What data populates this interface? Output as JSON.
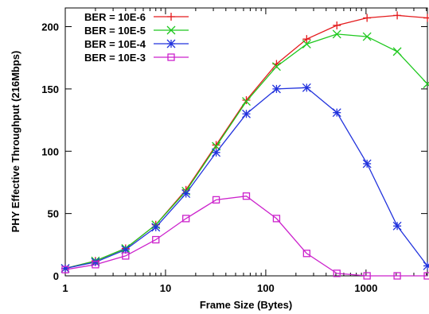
{
  "chart_data": {
    "type": "line",
    "xlabel": "Frame Size (Bytes)",
    "ylabel": "PHY Effective Throughput (216Mbps)",
    "x_scale": "log",
    "xlim": [
      1,
      4096
    ],
    "ylim": [
      0,
      215
    ],
    "x_ticks": [
      1,
      10,
      100,
      1000
    ],
    "x_tick_labels": [
      "1",
      "10",
      "100",
      "1000"
    ],
    "y_ticks": [
      0,
      50,
      100,
      150,
      200
    ],
    "y_tick_labels": [
      "0",
      "50",
      "100",
      "150",
      "200"
    ],
    "grid": false,
    "legend_position": "top-left",
    "x": [
      1,
      2,
      4,
      8,
      16,
      32,
      64,
      128,
      256,
      512,
      1024,
      2048,
      4096
    ],
    "series": [
      {
        "name": "BER = 10E-6",
        "color": "#e41a1c",
        "marker": "plus",
        "values": [
          6,
          12,
          22,
          41,
          69,
          105,
          141,
          170,
          190,
          201,
          207,
          209,
          207
        ]
      },
      {
        "name": "BER = 10E-5",
        "color": "#1ec81e",
        "marker": "cross",
        "values": [
          6,
          12,
          22,
          41,
          68,
          104,
          140,
          168,
          186,
          194,
          192,
          180,
          154
        ]
      },
      {
        "name": "BER = 10E-4",
        "color": "#2233dd",
        "marker": "star",
        "values": [
          6,
          11,
          21,
          39,
          66,
          99,
          130,
          150,
          151,
          131,
          90,
          40,
          8
        ]
      },
      {
        "name": "BER = 10E-3",
        "color": "#cc22cc",
        "marker": "square",
        "values": [
          5,
          9,
          16,
          29,
          46,
          61,
          64,
          46,
          18,
          2,
          0,
          0,
          0
        ]
      }
    ]
  }
}
